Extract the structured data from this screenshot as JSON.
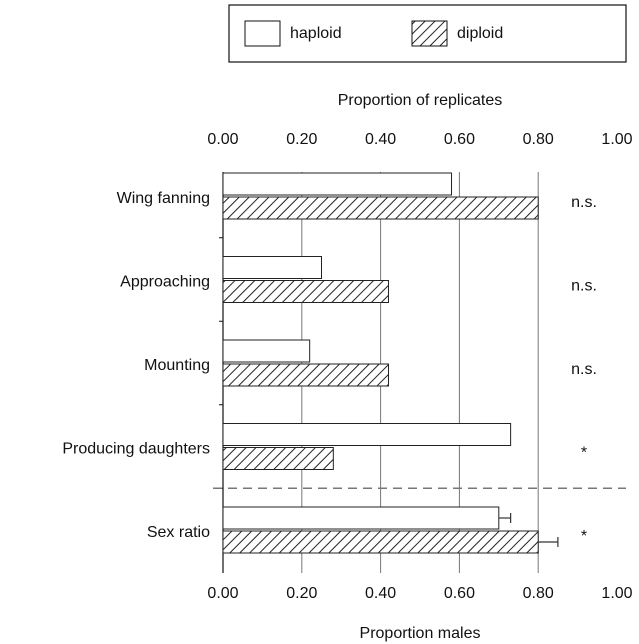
{
  "chart_data": {
    "type": "hbar",
    "x2_label": "Proportion of replicates",
    "x_label": "Proportion males",
    "categories": [
      "Wing fanning",
      "Approaching",
      "Mounting",
      "Producing daughters",
      "Sex ratio"
    ],
    "series": [
      {
        "name": "haploid",
        "color": "#ffffff",
        "hatch": false,
        "values": [
          0.58,
          0.25,
          0.22,
          0.73,
          0.7
        ],
        "errors": [
          null,
          null,
          null,
          null,
          0.03
        ]
      },
      {
        "name": "diploid",
        "color": "#ffffff",
        "hatch": true,
        "values": [
          0.8,
          0.42,
          0.42,
          0.28,
          0.8
        ],
        "errors": [
          null,
          null,
          null,
          null,
          0.05
        ]
      }
    ],
    "annotations": [
      "n.s.",
      "n.s.",
      "n.s.",
      "*",
      "*"
    ],
    "xlim": [
      0,
      1
    ],
    "xticks": [
      {
        "value": 0,
        "label": "0.00"
      },
      {
        "value": 0.2,
        "label": "0.20"
      },
      {
        "value": 0.4,
        "label": "0.40"
      },
      {
        "value": 0.6,
        "label": "0.60"
      },
      {
        "value": 0.8,
        "label": "0.80"
      },
      {
        "value": 1,
        "label": "1.00"
      }
    ],
    "grid": true,
    "legend": "top-right"
  }
}
